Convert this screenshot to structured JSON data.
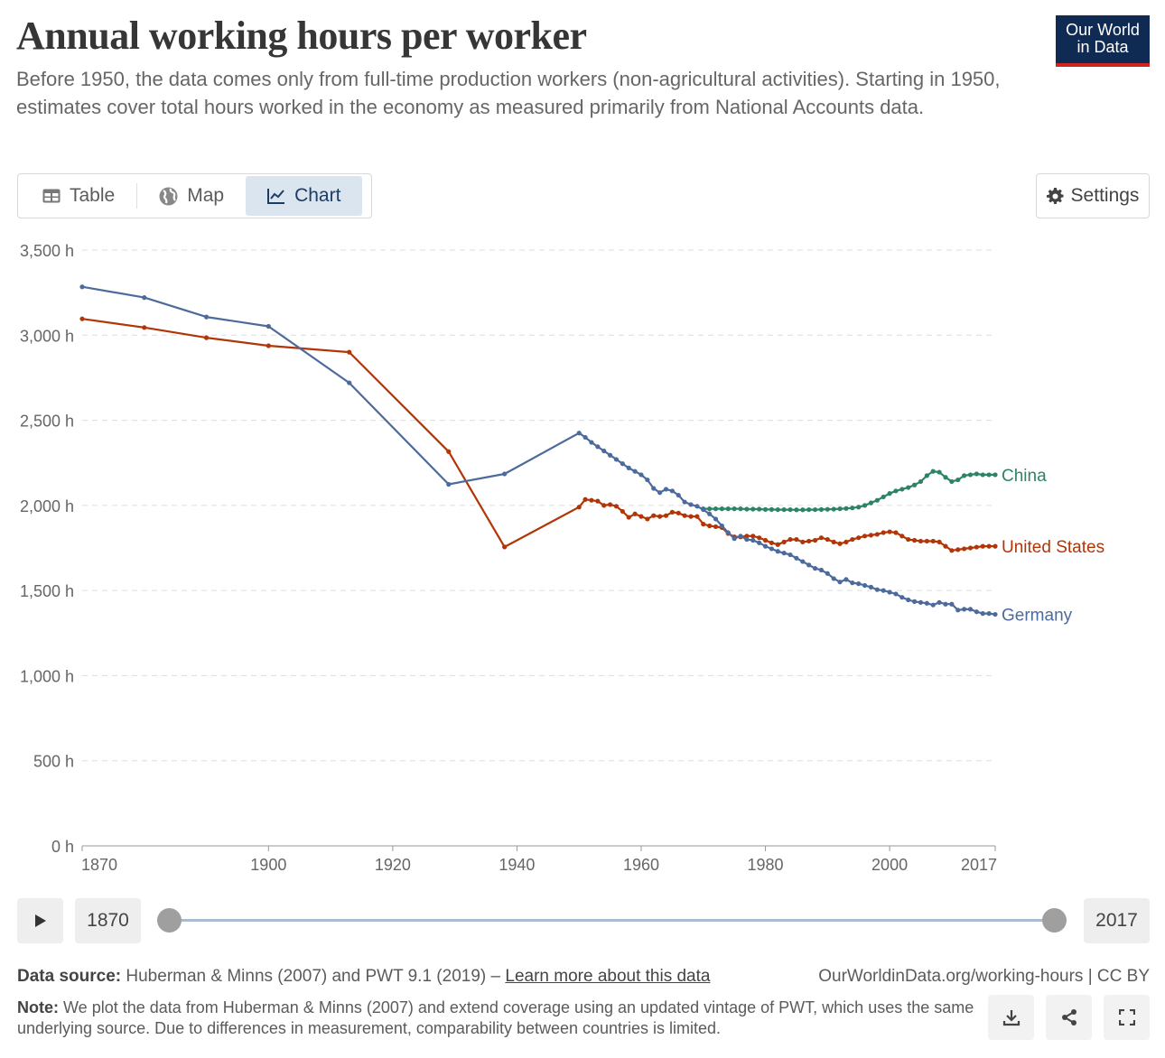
{
  "header": {
    "title": "Annual working hours per worker",
    "subtitle": "Before 1950, the data comes only from full-time production workers (non-agricultural activities). Starting in 1950, estimates cover total hours worked in the economy as measured primarily from National Accounts data.",
    "logo_line1": "Our World",
    "logo_line2": "in Data"
  },
  "tabs": [
    {
      "label": "Table",
      "icon": "table-icon"
    },
    {
      "label": "Map",
      "icon": "globe-icon"
    },
    {
      "label": "Chart",
      "icon": "line-chart-icon",
      "active": true
    }
  ],
  "settings_label": "Settings",
  "timeline": {
    "start_year": "1870",
    "end_year": "2017"
  },
  "footer": {
    "source_label": "Data source:",
    "source_text": "Huberman & Minns (2007) and PWT 9.1 (2019) –",
    "source_link": "Learn more about this data",
    "credit": "OurWorldinData.org/working-hours | CC BY",
    "note_label": "Note:",
    "note_text": "We plot the data from Huberman & Minns (2007) and extend coverage using an updated vintage of PWT, which uses the same underlying source. Due to differences in measurement, comparability between countries is limited."
  },
  "colors": {
    "china": "#2c8465",
    "united_states": "#b13507",
    "germany": "#4c6a9c",
    "grid": "#dddddd",
    "axis_text": "#666666"
  },
  "chart_data": {
    "type": "line",
    "title": "Annual working hours per worker",
    "xlabel": "",
    "ylabel": "",
    "xlim": [
      1870,
      2017
    ],
    "ylim": [
      0,
      3500
    ],
    "y_ticks": [
      0,
      500,
      1000,
      1500,
      2000,
      2500,
      3000,
      3500
    ],
    "y_tick_labels": [
      "0 h",
      "500 h",
      "1,000 h",
      "1,500 h",
      "2,000 h",
      "2,500 h",
      "3,000 h",
      "3,500 h"
    ],
    "x_ticks": [
      1870,
      1900,
      1920,
      1940,
      1960,
      1980,
      2000,
      2017
    ],
    "x_tick_labels": [
      "1870",
      "1900",
      "1920",
      "1940",
      "1960",
      "1980",
      "2000",
      "2017"
    ],
    "grid": "horizontal dashed",
    "legend": "inline labels at line ends",
    "series": [
      {
        "name": "China",
        "color": "#2c8465",
        "x": [
          1970,
          1971,
          1972,
          1973,
          1974,
          1975,
          1976,
          1977,
          1978,
          1979,
          1980,
          1981,
          1982,
          1983,
          1984,
          1985,
          1986,
          1987,
          1988,
          1989,
          1990,
          1991,
          1992,
          1993,
          1994,
          1995,
          1996,
          1997,
          1998,
          1999,
          2000,
          2001,
          2002,
          2003,
          2004,
          2005,
          2006,
          2007,
          2008,
          2009,
          2010,
          2011,
          2012,
          2013,
          2014,
          2015,
          2016,
          2017
        ],
        "y": [
          1980,
          1980,
          1980,
          1980,
          1980,
          1980,
          1980,
          1978,
          1978,
          1978,
          1976,
          1976,
          1975,
          1975,
          1975,
          1974,
          1974,
          1975,
          1975,
          1976,
          1977,
          1978,
          1980,
          1982,
          1985,
          1990,
          2000,
          2015,
          2030,
          2050,
          2070,
          2085,
          2095,
          2105,
          2120,
          2140,
          2175,
          2200,
          2195,
          2165,
          2140,
          2150,
          2175,
          2180,
          2185,
          2180,
          2180,
          2180
        ]
      },
      {
        "name": "United States",
        "color": "#b13507",
        "x": [
          1870,
          1880,
          1890,
          1900,
          1913,
          1929,
          1938,
          1950,
          1951,
          1952,
          1953,
          1954,
          1955,
          1956,
          1957,
          1958,
          1959,
          1960,
          1961,
          1962,
          1963,
          1964,
          1965,
          1966,
          1967,
          1968,
          1969,
          1970,
          1971,
          1972,
          1973,
          1974,
          1975,
          1976,
          1977,
          1978,
          1979,
          1980,
          1981,
          1982,
          1983,
          1984,
          1985,
          1986,
          1987,
          1988,
          1989,
          1990,
          1991,
          1992,
          1993,
          1994,
          1995,
          1996,
          1997,
          1998,
          1999,
          2000,
          2001,
          2002,
          2003,
          2004,
          2005,
          2006,
          2007,
          2008,
          2009,
          2010,
          2011,
          2012,
          2013,
          2014,
          2015,
          2016,
          2017
        ],
        "y": [
          3096,
          3045,
          2985,
          2938,
          2900,
          2316,
          1756,
          1990,
          2035,
          2030,
          2025,
          2000,
          2005,
          1995,
          1965,
          1930,
          1950,
          1935,
          1920,
          1940,
          1935,
          1940,
          1960,
          1955,
          1940,
          1935,
          1935,
          1890,
          1880,
          1875,
          1870,
          1835,
          1815,
          1815,
          1820,
          1820,
          1810,
          1795,
          1780,
          1770,
          1785,
          1800,
          1800,
          1785,
          1790,
          1795,
          1810,
          1800,
          1785,
          1775,
          1785,
          1800,
          1810,
          1820,
          1825,
          1830,
          1840,
          1845,
          1840,
          1820,
          1800,
          1795,
          1790,
          1790,
          1790,
          1785,
          1760,
          1735,
          1740,
          1745,
          1750,
          1755,
          1760,
          1760,
          1760
        ]
      },
      {
        "name": "Germany",
        "color": "#4c6a9c",
        "x": [
          1870,
          1880,
          1890,
          1900,
          1913,
          1929,
          1938,
          1950,
          1951,
          1952,
          1953,
          1954,
          1955,
          1956,
          1957,
          1958,
          1959,
          1960,
          1961,
          1962,
          1963,
          1964,
          1965,
          1966,
          1967,
          1968,
          1969,
          1970,
          1971,
          1972,
          1973,
          1974,
          1975,
          1976,
          1977,
          1978,
          1979,
          1980,
          1981,
          1982,
          1983,
          1984,
          1985,
          1986,
          1987,
          1988,
          1989,
          1990,
          1991,
          1992,
          1993,
          1994,
          1995,
          1996,
          1997,
          1998,
          1999,
          2000,
          2001,
          2002,
          2003,
          2004,
          2005,
          2006,
          2007,
          2008,
          2009,
          2010,
          2011,
          2012,
          2013,
          2014,
          2015,
          2016,
          2017
        ],
        "y": [
          3284,
          3221,
          3107,
          3052,
          2720,
          2124,
          2185,
          2425,
          2400,
          2370,
          2345,
          2320,
          2295,
          2270,
          2245,
          2220,
          2200,
          2180,
          2150,
          2100,
          2075,
          2095,
          2085,
          2060,
          2020,
          2005,
          1995,
          1975,
          1950,
          1920,
          1880,
          1840,
          1805,
          1820,
          1800,
          1795,
          1780,
          1760,
          1745,
          1730,
          1720,
          1710,
          1690,
          1670,
          1650,
          1630,
          1620,
          1600,
          1570,
          1550,
          1565,
          1545,
          1540,
          1530,
          1520,
          1505,
          1500,
          1490,
          1480,
          1460,
          1445,
          1435,
          1430,
          1425,
          1415,
          1430,
          1420,
          1420,
          1385,
          1390,
          1390,
          1375,
          1365,
          1365,
          1360
        ]
      }
    ]
  }
}
